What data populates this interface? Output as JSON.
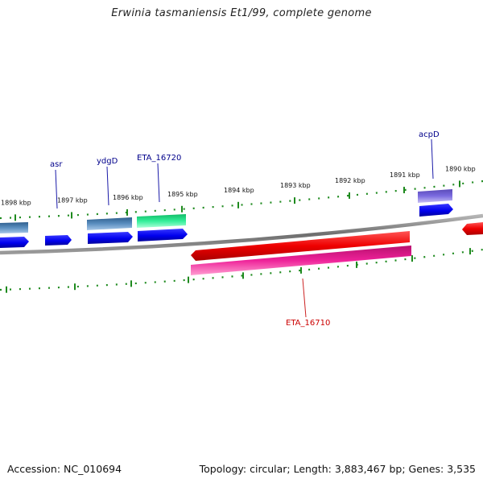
{
  "title": "Erwinia tasmaniensis Et1/99, complete genome",
  "footer": {
    "accession": "Accession: NC_010694",
    "summary": "Topology: circular; Length: 3,883,467 bp; Genes: 3,535"
  },
  "ruler_labels": [
    "1898 kbp",
    "1897 kbp",
    "1896 kbp",
    "1895 kbp",
    "1894 kbp",
    "1893 kbp",
    "1892 kbp",
    "1891 kbp",
    "1890 kbp"
  ],
  "gene_labels": {
    "asr": "asr",
    "ydgD": "ydgD",
    "ETA_16720": "ETA_16720",
    "acpD": "acpD",
    "ETA_16710": "ETA_16710"
  },
  "colors": {
    "backbone": "#7a7a7a",
    "ruler": "#1e8a1e",
    "label_blue": "#00008b",
    "label_red": "#cc0000",
    "cds_blue": "#0000ee",
    "steelblue": "#4a7fb0",
    "green": "#22dd88",
    "purple": "#6a5acd",
    "red": "#ee0000",
    "pink": "#ee2299"
  }
}
